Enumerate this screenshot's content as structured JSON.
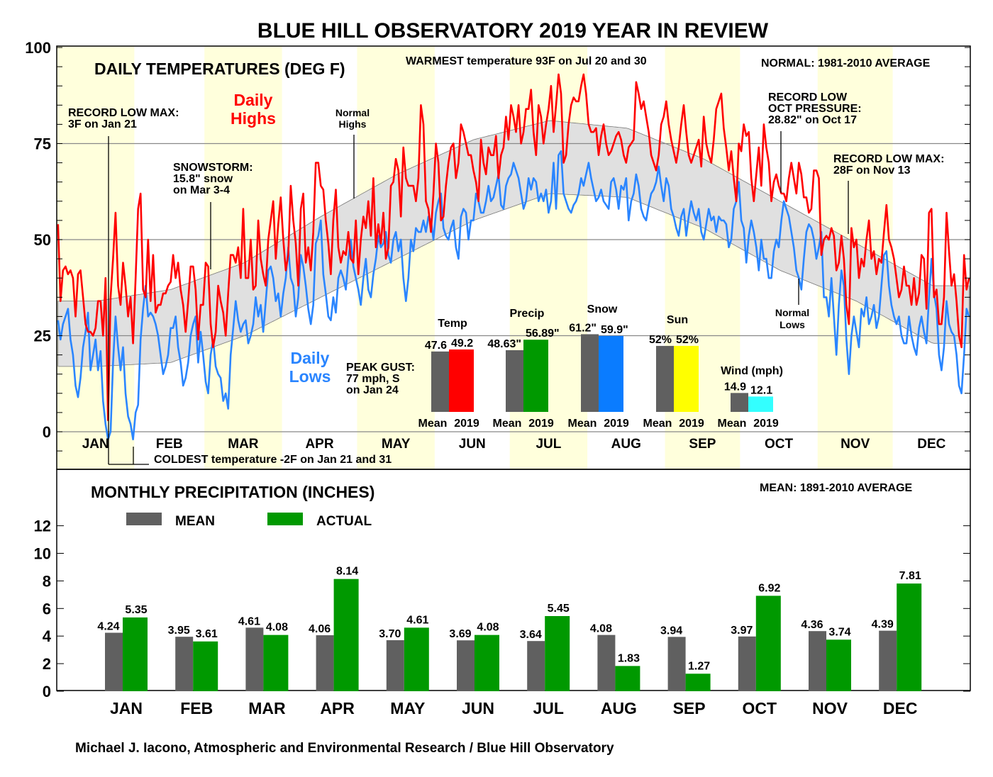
{
  "title": "BLUE HILL OBSERVATORY 2019 YEAR IN REVIEW",
  "footer": "Michael J. Iacono, Atmospheric and Environmental Research / Blue Hill Observatory",
  "colors": {
    "highs": "#ff0000",
    "lows": "#2a85ff",
    "normal_band": "#e0e0e0",
    "month_shade": "#ffffdc",
    "mean_bar": "#606060",
    "actual_precip": "#009900"
  },
  "temp_panel": {
    "title": "DAILY TEMPERATURES (DEG F)",
    "normal_note": "NORMAL: 1981-2010 AVERAGE",
    "highs_label_1": "Daily",
    "highs_label_2": "Highs",
    "lows_label_1": "Daily",
    "lows_label_2": "Lows",
    "normal_highs_1": "Normal",
    "normal_highs_2": "Highs",
    "normal_lows_1": "Normal",
    "normal_lows_2": "Lows"
  },
  "annotations": {
    "warmest": "WARMEST temperature 93F on Jul 20 and 30",
    "record_low_max_jan_1": "RECORD LOW MAX:",
    "record_low_max_jan_2": "3F on Jan 21",
    "snowstorm_1": "SNOWSTORM:",
    "snowstorm_2": "15.8\" snow",
    "snowstorm_3": "on Mar 3-4",
    "oct_pressure_1": "RECORD LOW",
    "oct_pressure_2": "OCT PRESSURE:",
    "oct_pressure_3": "28.82\" on Oct 17",
    "record_low_max_nov_1": "RECORD LOW MAX:",
    "record_low_max_nov_2": "28F on Nov 13",
    "peak_gust_1": "PEAK GUST:",
    "peak_gust_2": "77 mph, S",
    "peak_gust_3": "on Jan 24",
    "coldest": "COLDEST temperature -2F on Jan 21 and 31"
  },
  "precip_panel": {
    "title": "MONTHLY PRECIPITATION (INCHES)",
    "mean_note": "MEAN: 1891-2010 AVERAGE",
    "legend_mean": "MEAN",
    "legend_actual": "ACTUAL"
  },
  "chart_data": [
    {
      "type": "line",
      "title": "DAILY TEMPERATURES (DEG F)",
      "ylim": [
        -10,
        101.5
      ],
      "yticks": [
        "0",
        "25",
        "50",
        "75",
        "100"
      ],
      "grid": true,
      "months": [
        "JAN",
        "FEB",
        "MAR",
        "APR",
        "MAY",
        "JUN",
        "JUL",
        "AUG",
        "SEP",
        "OCT",
        "NOV",
        "DEC"
      ],
      "normal_highs_monthly": [
        34,
        37,
        44,
        56,
        67,
        76,
        81,
        79,
        71,
        60,
        49,
        38
      ],
      "normal_lows_monthly": [
        17,
        18,
        25,
        35,
        45,
        55,
        62,
        61,
        53,
        42,
        34,
        23
      ],
      "series": [
        {
          "name": "Daily Highs",
          "values": [
            54,
            34,
            42,
            43,
            41,
            42,
            40,
            30,
            41,
            42,
            35,
            28,
            26,
            26,
            25,
            27,
            34,
            34,
            25,
            40,
            3,
            35,
            45,
            57,
            38,
            33,
            44,
            38,
            30,
            35,
            23,
            40,
            58,
            62,
            37,
            35,
            50,
            34,
            46,
            31,
            33,
            33,
            36,
            36,
            38,
            39,
            46,
            40,
            44,
            37,
            33,
            26,
            34,
            43,
            43,
            37,
            24,
            33,
            33,
            44,
            43,
            28,
            22,
            26,
            38,
            34,
            31,
            25,
            36,
            46,
            46,
            44,
            48,
            40,
            58,
            40,
            40,
            50,
            37,
            38,
            55,
            45,
            41,
            38,
            50,
            55,
            60,
            45,
            54,
            61,
            50,
            42,
            46,
            64,
            55,
            49,
            38,
            58,
            62,
            44,
            48,
            42,
            52,
            70,
            70,
            64,
            63,
            55,
            49,
            41,
            55,
            63,
            48,
            44,
            47,
            46,
            52,
            45,
            44,
            55,
            41,
            50,
            56,
            53,
            60,
            51,
            66,
            48,
            54,
            49,
            57,
            45,
            48,
            64,
            65,
            71,
            68,
            56,
            74,
            66,
            64,
            64,
            64,
            60,
            66,
            85,
            80,
            60,
            58,
            52,
            62,
            75,
            70,
            55,
            56,
            64,
            70,
            74,
            75,
            66,
            70,
            80,
            78,
            75,
            72,
            72,
            68,
            65,
            60,
            76,
            70,
            67,
            74,
            72,
            72,
            77,
            66,
            72,
            74,
            82,
            76,
            85,
            82,
            78,
            85,
            75,
            78,
            84,
            84,
            89,
            78,
            72,
            85,
            82,
            75,
            80,
            84,
            90,
            78,
            85,
            93,
            88,
            70,
            72,
            80,
            85,
            87,
            86,
            86,
            90,
            93,
            88,
            80,
            78,
            78,
            79,
            72,
            77,
            80,
            75,
            72,
            73,
            75,
            77,
            78,
            76,
            72,
            70,
            74,
            75,
            76,
            91,
            88,
            84,
            86,
            82,
            78,
            72,
            70,
            68,
            72,
            80,
            82,
            86,
            80,
            76,
            73,
            70,
            74,
            80,
            85,
            78,
            72,
            70,
            72,
            74,
            76,
            69,
            82,
            75,
            72,
            70,
            76,
            84,
            86,
            88,
            79,
            74,
            68,
            73,
            66,
            60,
            75,
            73,
            80,
            77,
            78,
            66,
            60,
            67,
            74,
            64,
            80,
            74,
            70,
            60,
            65,
            67,
            64,
            62,
            62,
            60,
            66,
            70,
            66,
            62,
            70,
            67,
            61,
            61,
            57,
            58,
            68,
            68,
            66,
            46,
            50,
            51,
            50,
            53,
            51,
            42,
            44,
            51,
            45,
            33,
            28,
            53,
            48,
            50,
            40,
            45,
            43,
            50,
            55,
            45,
            47,
            41,
            45,
            44,
            52,
            59,
            50,
            48,
            45,
            40,
            35,
            37,
            43,
            38,
            38,
            33,
            40,
            33,
            36,
            46,
            45,
            32,
            57,
            58,
            35,
            37,
            28,
            28,
            35,
            57,
            47,
            38,
            41,
            34,
            25,
            22,
            46,
            37,
            40
          ]
        },
        {
          "name": "Daily Lows",
          "values": [
            29,
            24,
            28,
            30,
            32,
            24,
            20,
            12,
            9,
            14,
            22,
            26,
            31,
            16,
            20,
            24,
            16,
            21,
            8,
            2,
            -2,
            0,
            18,
            30,
            22,
            16,
            22,
            10,
            4,
            2,
            -2,
            5,
            7,
            24,
            32,
            38,
            30,
            31,
            30,
            28,
            25,
            20,
            15,
            17,
            20,
            27,
            27,
            30,
            22,
            18,
            12,
            14,
            18,
            25,
            28,
            30,
            18,
            26,
            20,
            13,
            10,
            20,
            24,
            17,
            15,
            14,
            8,
            10,
            6,
            20,
            27,
            34,
            29,
            26,
            28,
            29,
            23,
            25,
            28,
            35,
            30,
            33,
            26,
            34,
            42,
            43,
            40,
            34,
            36,
            30,
            36,
            40,
            48,
            40,
            38,
            30,
            35,
            46,
            43,
            38,
            32,
            28,
            33,
            49,
            51,
            55,
            41,
            36,
            30,
            29,
            35,
            31,
            40,
            42,
            40,
            37,
            45,
            50,
            43,
            40,
            37,
            33,
            40,
            45,
            37,
            35,
            41,
            45,
            51,
            48,
            49,
            52,
            46,
            44,
            50,
            52,
            47,
            50,
            40,
            34,
            40,
            50,
            47,
            53,
            52,
            52,
            55,
            52,
            56,
            55,
            50,
            57,
            60,
            62,
            53,
            51,
            50,
            53,
            55,
            48,
            45,
            56,
            58,
            57,
            50,
            55,
            55,
            62,
            60,
            57,
            57,
            60,
            64,
            60,
            61,
            64,
            67,
            59,
            58,
            64,
            66,
            67,
            70,
            68,
            66,
            62,
            58,
            60,
            66,
            63,
            66,
            65,
            60,
            62,
            60,
            63,
            57,
            60,
            70,
            58,
            72,
            73,
            62,
            60,
            58,
            57,
            59,
            60,
            62,
            66,
            64,
            67,
            70,
            66,
            63,
            60,
            61,
            63,
            60,
            59,
            58,
            65,
            66,
            63,
            58,
            64,
            63,
            66,
            55,
            60,
            62,
            67,
            64,
            58,
            56,
            55,
            59,
            62,
            63,
            65,
            69,
            64,
            60,
            66,
            64,
            58,
            56,
            53,
            51,
            56,
            58,
            51,
            56,
            60,
            57,
            55,
            58,
            52,
            50,
            54,
            58,
            55,
            56,
            52,
            56,
            55,
            55,
            54,
            48,
            50,
            58,
            60,
            65,
            55,
            53,
            44,
            51,
            55,
            52,
            48,
            42,
            50,
            45,
            45,
            40,
            40,
            47,
            50,
            48,
            55,
            60,
            58,
            56,
            52,
            48,
            42,
            40,
            37,
            45,
            52,
            54,
            53,
            50,
            45,
            48,
            52,
            35,
            35,
            30,
            40,
            30,
            20,
            33,
            42,
            38,
            24,
            15,
            25,
            30,
            26,
            22,
            32,
            30,
            35,
            28,
            30,
            33,
            27,
            30,
            38,
            46,
            47,
            38,
            33,
            30,
            28,
            30,
            25,
            23,
            23,
            30,
            25,
            22,
            20,
            27,
            30,
            26,
            23,
            35,
            45,
            36,
            32,
            20,
            16,
            22,
            34,
            28,
            26,
            25,
            20,
            12,
            10,
            20,
            32,
            30
          ]
        }
      ]
    },
    {
      "type": "bar",
      "categories": [
        "Temp",
        "Precip",
        "Snow",
        "Sun",
        "Wind (mph)"
      ],
      "bar_labels": [
        "Mean",
        "2019"
      ],
      "mean": [
        47.6,
        48.63,
        61.2,
        52,
        14.9
      ],
      "actual": [
        49.2,
        56.89,
        59.9,
        52,
        12.1
      ],
      "mean_labels": [
        "47.6",
        "48.63\"",
        "61.2\"",
        "52%",
        "14.9"
      ],
      "actual_labels": [
        "49.2",
        "56.89\"",
        "59.9\"",
        "52%",
        "12.1"
      ],
      "actual_colors": [
        "#ff0000",
        "#009900",
        "#0a7cff",
        "#ffff00",
        "#33ffff"
      ]
    },
    {
      "type": "bar",
      "title": "MONTHLY PRECIPITATION (INCHES)",
      "categories": [
        "JAN",
        "FEB",
        "MAR",
        "APR",
        "MAY",
        "JUN",
        "JUL",
        "AUG",
        "SEP",
        "OCT",
        "NOV",
        "DEC"
      ],
      "ylim": [
        0,
        13.5
      ],
      "yticks": [
        "0",
        "2",
        "4",
        "6",
        "8",
        "10",
        "12"
      ],
      "series": [
        {
          "name": "MEAN",
          "values": [
            4.24,
            3.95,
            4.61,
            4.06,
            3.7,
            3.69,
            3.64,
            4.08,
            3.94,
            3.97,
            4.36,
            4.39
          ]
        },
        {
          "name": "ACTUAL",
          "values": [
            5.35,
            3.61,
            4.08,
            8.14,
            4.61,
            4.08,
            5.45,
            1.83,
            1.27,
            6.92,
            3.74,
            7.81
          ]
        }
      ]
    }
  ]
}
